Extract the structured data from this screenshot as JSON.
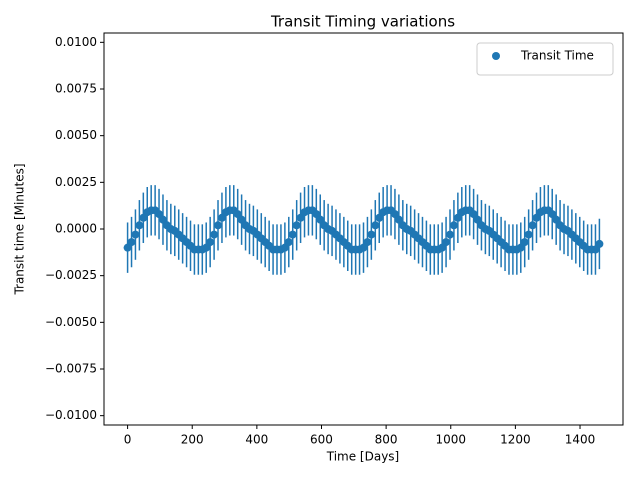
{
  "chart_data": {
    "type": "errorbar-scatter",
    "title": "Transit Timing variations",
    "x_label": "Time [Days]",
    "y_label": "Transit time [Minutes]",
    "x": [
      0,
      12.2,
      24.3,
      36.5,
      48.7,
      60.8,
      73,
      85.2,
      97.3,
      109.5,
      121.7,
      133.8,
      146,
      158.2,
      170.3,
      182.5,
      194.7,
      206.8,
      219,
      231.2,
      243.3,
      255.5,
      267.7,
      279.8,
      292,
      304.2,
      316.3,
      328.5,
      340.7,
      352.8,
      365,
      377.2,
      389.3,
      401.5,
      413.7,
      425.8,
      438,
      450.2,
      462.3,
      474.5,
      486.7,
      498.8,
      511,
      523.2,
      535.3,
      547.5,
      559.7,
      571.8,
      584,
      596.2,
      608.3,
      620.5,
      632.7,
      644.8,
      657,
      669.2,
      681.3,
      693.5,
      705.7,
      717.8,
      730,
      742.2,
      754.3,
      766.5,
      778.7,
      790.8,
      803,
      815.2,
      827.3,
      839.5,
      851.7,
      863.8,
      876,
      888.2,
      900.3,
      912.5,
      924.7,
      936.8,
      949,
      961.2,
      973.3,
      985.5,
      997.7,
      1009.8,
      1022,
      1034.2,
      1046.3,
      1058.5,
      1070.7,
      1082.8,
      1095,
      1107.2,
      1119.3,
      1131.5,
      1143.7,
      1155.8,
      1168,
      1180.2,
      1192.3,
      1204.5,
      1216.7,
      1228.8,
      1241,
      1253.2,
      1265.3,
      1277.5,
      1289.7,
      1301.8,
      1314,
      1326.2,
      1338.3,
      1350.5,
      1362.7,
      1374.8,
      1387,
      1399.2,
      1411.3,
      1423.5,
      1435.7,
      1447.8,
      1460
    ],
    "series": [
      {
        "name": "Transit Time",
        "color": "#1f77b4",
        "error": 0.00135,
        "values": [
          -0.001,
          -0.0007,
          -0.0003,
          0.0002,
          0.0006,
          0.0009,
          0.001,
          0.001,
          0.0008,
          0.0005,
          0.0002,
          0,
          -0.0001,
          -0.0003,
          -0.0005,
          -0.0007,
          -0.0009,
          -0.0011,
          -0.0011,
          -0.0011,
          -0.001,
          -0.0007,
          -0.0003,
          0.0002,
          0.0006,
          0.0009,
          0.001,
          0.001,
          0.0008,
          0.0005,
          0.0002,
          0,
          -0.0001,
          -0.0003,
          -0.0005,
          -0.0007,
          -0.0009,
          -0.0011,
          -0.0011,
          -0.0011,
          -0.001,
          -0.0007,
          -0.0003,
          0.0002,
          0.0006,
          0.0009,
          0.001,
          0.001,
          0.0008,
          0.0005,
          0.0002,
          0,
          -0.0001,
          -0.0003,
          -0.0005,
          -0.0007,
          -0.0009,
          -0.0011,
          -0.0011,
          -0.0011,
          -0.001,
          -0.0007,
          -0.0003,
          0.0002,
          0.0006,
          0.0009,
          0.001,
          0.001,
          0.0008,
          0.0005,
          0.0002,
          0,
          -0.0001,
          -0.0003,
          -0.0005,
          -0.0007,
          -0.0009,
          -0.0011,
          -0.0011,
          -0.0011,
          -0.001,
          -0.0007,
          -0.0003,
          0.0002,
          0.0006,
          0.0009,
          0.001,
          0.001,
          0.0008,
          0.0005,
          0.0002,
          0,
          -0.0001,
          -0.0003,
          -0.0005,
          -0.0007,
          -0.0009,
          -0.0011,
          -0.0011,
          -0.0011,
          -0.001,
          -0.0007,
          -0.0003,
          0.0002,
          0.0006,
          0.0009,
          0.001,
          0.001,
          0.0008,
          0.0005,
          0.0002,
          0,
          -0.0001,
          -0.0003,
          -0.0005,
          -0.0007,
          -0.0009,
          -0.0011,
          -0.0011,
          -0.0011,
          -0.0008
        ]
      }
    ],
    "xlim": [
      -73,
      1533
    ],
    "xticks": [
      0,
      200,
      400,
      600,
      800,
      1000,
      1200,
      1400
    ],
    "ylim": [
      -0.0105,
      0.0105
    ],
    "yticks": [
      {
        "value": -0.01,
        "label": "−0.0100"
      },
      {
        "value": -0.0075,
        "label": "−0.0075"
      },
      {
        "value": -0.005,
        "label": "−0.0050"
      },
      {
        "value": -0.0025,
        "label": "−0.0025"
      },
      {
        "value": 0,
        "label": "0.0000"
      },
      {
        "value": 0.0025,
        "label": "0.0025"
      },
      {
        "value": 0.005,
        "label": "0.0050"
      },
      {
        "value": 0.0075,
        "label": "0.0075"
      },
      {
        "value": 0.01,
        "label": "0.0100"
      }
    ],
    "legend": "upper right",
    "grid": false
  }
}
